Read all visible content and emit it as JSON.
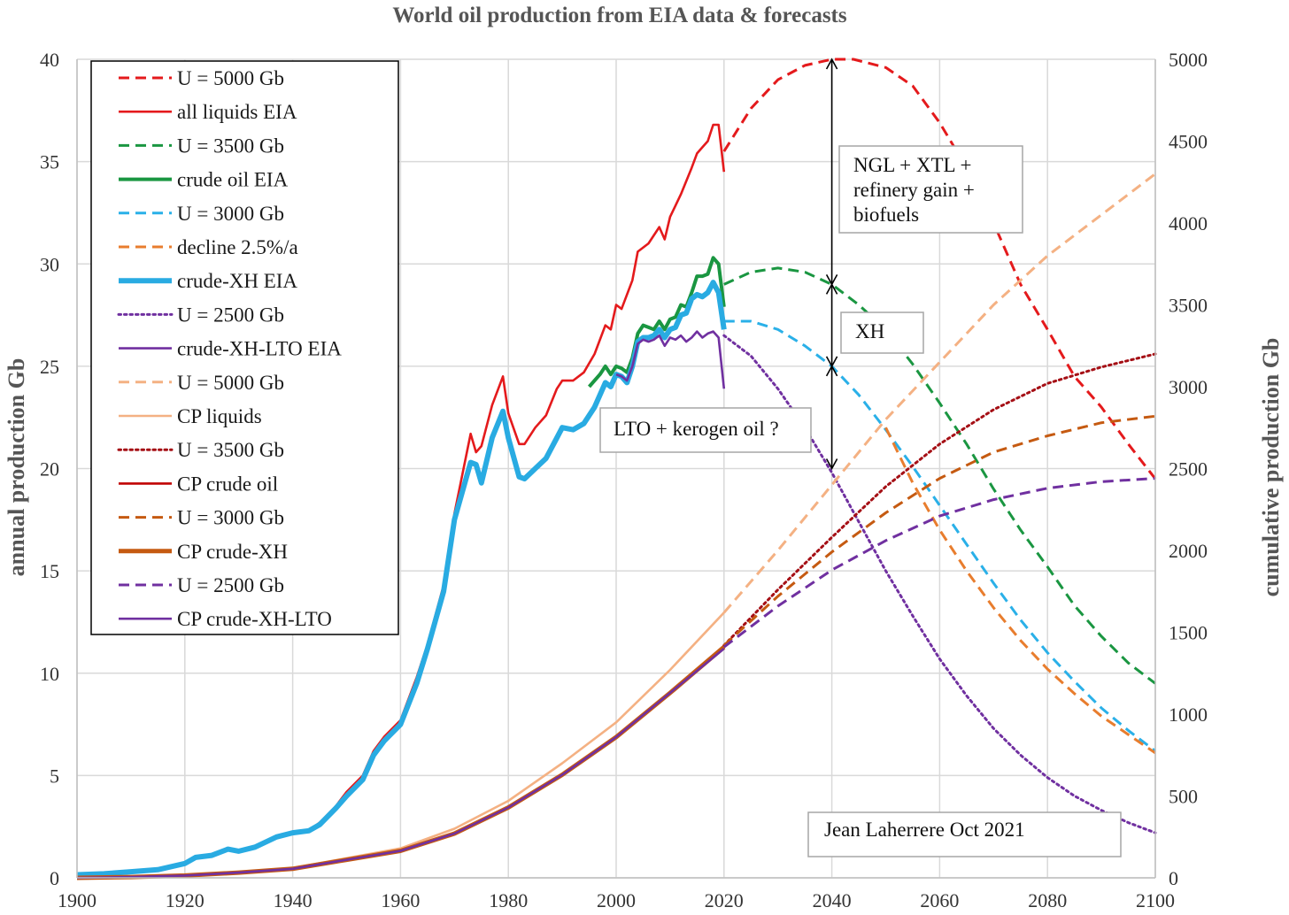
{
  "chart_data": {
    "type": "line",
    "title": "World oil production from EIA data & forecasts",
    "ylabel_left": "annual production Gb",
    "ylabel_right": "cumulative production Gb",
    "xlim": [
      1900,
      2100
    ],
    "ylim_left": [
      0,
      40
    ],
    "ylim_right": [
      0,
      5000
    ],
    "x_ticks": [
      "1900",
      "1920",
      "1940",
      "1960",
      "1980",
      "2000",
      "2020",
      "2040",
      "2060",
      "2080",
      "2100"
    ],
    "y_ticks_left": [
      "0",
      "5",
      "10",
      "15",
      "20",
      "25",
      "30",
      "35",
      "40"
    ],
    "y_ticks_right": [
      "0",
      "500",
      "1000",
      "1500",
      "2000",
      "2500",
      "3000",
      "3500",
      "4000",
      "4500",
      "5000"
    ],
    "grid": true,
    "legend_position": "top-left",
    "series": [
      {
        "name": "U = 5000 Gb",
        "axis": "left",
        "color": "#e41a1c",
        "dash": "dashed",
        "x": [
          2020,
          2025,
          2030,
          2035,
          2040,
          2044,
          2050,
          2055,
          2060,
          2065,
          2070,
          2075,
          2080,
          2085,
          2090,
          2095,
          2100
        ],
        "y": [
          35.5,
          37.6,
          39.0,
          39.7,
          40.0,
          40.0,
          39.6,
          38.7,
          36.9,
          34.7,
          32.0,
          29.0,
          26.8,
          24.5,
          23.0,
          21.2,
          19.5
        ]
      },
      {
        "name": "all liquids EIA",
        "axis": "left",
        "color": "#e41a1c",
        "dash": "solid",
        "x": [
          1900,
          1905,
          1910,
          1915,
          1920,
          1922,
          1925,
          1928,
          1930,
          1933,
          1937,
          1940,
          1943,
          1945,
          1948,
          1950,
          1953,
          1955,
          1957,
          1960,
          1963,
          1965,
          1968,
          1970,
          1973,
          1974,
          1975,
          1977,
          1979,
          1980,
          1982,
          1983,
          1985,
          1987,
          1989,
          1990,
          1992,
          1994,
          1996,
          1998,
          1999,
          2000,
          2001,
          2003,
          2004,
          2006,
          2008,
          2009,
          2010,
          2012,
          2014,
          2015,
          2016,
          2017,
          2018,
          2019,
          2020
        ],
        "y": [
          0.15,
          0.2,
          0.3,
          0.4,
          0.7,
          1.0,
          1.1,
          1.4,
          1.3,
          1.5,
          2.0,
          2.2,
          2.3,
          2.7,
          3.5,
          4.2,
          5.0,
          6.2,
          6.9,
          7.7,
          9.8,
          11.4,
          14.3,
          17.8,
          21.7,
          20.8,
          21.1,
          23.1,
          24.5,
          22.7,
          21.2,
          21.2,
          22.0,
          22.6,
          23.9,
          24.3,
          24.3,
          24.7,
          25.6,
          27.0,
          26.8,
          28.0,
          27.8,
          29.2,
          30.6,
          31.0,
          31.8,
          31.2,
          32.3,
          33.4,
          34.7,
          35.4,
          35.7,
          36.0,
          36.8,
          36.8,
          34.5
        ]
      },
      {
        "name": "U = 3500 Gb",
        "axis": "left",
        "color": "#1a9641",
        "dash": "dashed",
        "x": [
          2020,
          2025,
          2030,
          2035,
          2040,
          2045,
          2050,
          2055,
          2060,
          2065,
          2070,
          2075,
          2080,
          2085,
          2090,
          2095,
          2100
        ],
        "y": [
          29.0,
          29.6,
          29.8,
          29.6,
          29.0,
          28.0,
          26.8,
          25.1,
          23.2,
          21.2,
          19.0,
          17.0,
          15.2,
          13.3,
          11.8,
          10.5,
          9.5
        ]
      },
      {
        "name": "crude oil  EIA",
        "axis": "left",
        "color": "#1a9641",
        "dash": "solid",
        "x": [
          1995,
          1997,
          1998,
          1999,
          2000,
          2001,
          2002,
          2003,
          2004,
          2005,
          2006,
          2007,
          2008,
          2009,
          2010,
          2011,
          2012,
          2013,
          2014,
          2015,
          2016,
          2017,
          2018,
          2019,
          2020
        ],
        "y": [
          24.0,
          24.6,
          25.0,
          24.6,
          25.0,
          24.9,
          24.7,
          25.4,
          26.6,
          27.0,
          26.9,
          26.8,
          27.2,
          26.8,
          27.3,
          27.4,
          28.0,
          27.9,
          28.6,
          29.4,
          29.4,
          29.5,
          30.3,
          30.0,
          27.9
        ]
      },
      {
        "name": "U = 3000 Gb",
        "axis": "left",
        "color": "#2ab0e8",
        "dash": "dashed",
        "x": [
          2020,
          2025,
          2030,
          2035,
          2040,
          2045,
          2050,
          2055,
          2060,
          2065,
          2070,
          2075,
          2080,
          2085,
          2090,
          2095,
          2100
        ],
        "y": [
          27.2,
          27.2,
          26.8,
          26.0,
          25.0,
          23.6,
          21.9,
          20.1,
          18.2,
          16.3,
          14.4,
          12.6,
          11.0,
          9.6,
          8.3,
          7.2,
          6.2
        ]
      },
      {
        "name": "decline 2.5%/a",
        "axis": "left",
        "color": "#e87d2e",
        "dash": "dashed",
        "x": [
          2050,
          2055,
          2060,
          2065,
          2070,
          2075,
          2080,
          2085,
          2090,
          2095,
          2100
        ],
        "y": [
          22.0,
          19.3,
          17.0,
          15.0,
          13.2,
          11.6,
          10.2,
          9.0,
          7.9,
          7.0,
          6.1
        ]
      },
      {
        "name": "crude-XH EIA",
        "axis": "left",
        "color": "#29abe2",
        "dash": "solid",
        "x": [
          1900,
          1905,
          1910,
          1915,
          1920,
          1922,
          1925,
          1928,
          1930,
          1933,
          1937,
          1940,
          1943,
          1945,
          1948,
          1950,
          1953,
          1955,
          1957,
          1960,
          1963,
          1965,
          1968,
          1970,
          1973,
          1974,
          1975,
          1977,
          1979,
          1980,
          1982,
          1983,
          1985,
          1987,
          1989,
          1990,
          1992,
          1994,
          1996,
          1998,
          1999,
          2000,
          2001,
          2002,
          2003,
          2004,
          2005,
          2006,
          2007,
          2008,
          2009,
          2010,
          2011,
          2012,
          2013,
          2014,
          2015,
          2016,
          2017,
          2018,
          2019,
          2020
        ],
        "y": [
          0.15,
          0.2,
          0.3,
          0.4,
          0.7,
          1.0,
          1.1,
          1.4,
          1.3,
          1.5,
          2.0,
          2.2,
          2.3,
          2.6,
          3.4,
          4.0,
          4.8,
          6.0,
          6.7,
          7.5,
          9.5,
          11.2,
          14.0,
          17.5,
          20.3,
          20.2,
          19.3,
          21.5,
          22.8,
          21.5,
          19.6,
          19.5,
          20.0,
          20.5,
          21.5,
          22.0,
          21.9,
          22.2,
          23.0,
          24.2,
          24.0,
          24.6,
          24.5,
          24.2,
          25.0,
          26.2,
          26.4,
          26.4,
          26.5,
          26.8,
          26.4,
          26.8,
          26.9,
          27.5,
          27.6,
          28.3,
          28.5,
          28.4,
          28.6,
          29.1,
          28.6,
          26.8
        ]
      },
      {
        "name": "U = 2500 Gb",
        "axis": "left",
        "color": "#7030a0",
        "dash": "dotted",
        "x": [
          2020,
          2025,
          2030,
          2035,
          2040,
          2045,
          2050,
          2055,
          2060,
          2065,
          2070,
          2075,
          2080,
          2085,
          2090,
          2095,
          2100
        ],
        "y": [
          26.5,
          25.5,
          23.9,
          22.0,
          19.8,
          17.4,
          15.0,
          12.8,
          10.7,
          8.9,
          7.3,
          6.0,
          4.9,
          4.0,
          3.3,
          2.7,
          2.2
        ]
      },
      {
        "name": "crude-XH-LTO EIA",
        "axis": "left",
        "color": "#7030a0",
        "dash": "solid",
        "x": [
          2000,
          2001,
          2002,
          2003,
          2004,
          2005,
          2006,
          2007,
          2008,
          2009,
          2010,
          2011,
          2012,
          2013,
          2014,
          2015,
          2016,
          2017,
          2018,
          2019,
          2020
        ],
        "y": [
          24.6,
          24.5,
          24.3,
          25.0,
          26.1,
          26.3,
          26.2,
          26.3,
          26.5,
          26.0,
          26.4,
          26.3,
          26.5,
          26.2,
          26.4,
          26.7,
          26.4,
          26.6,
          26.7,
          26.4,
          23.9
        ]
      },
      {
        "name": "U = 5000 Gb",
        "axis": "right",
        "color": "#f4b183",
        "dash": "dashed",
        "x": [
          2020,
          2030,
          2040,
          2050,
          2060,
          2070,
          2080,
          2090,
          2100
        ],
        "y": [
          1620,
          2000,
          2400,
          2800,
          3150,
          3500,
          3800,
          4050,
          4300
        ]
      },
      {
        "name": "CP liquids",
        "axis": "right",
        "color": "#f4b183",
        "dash": "solid",
        "x": [
          1900,
          1910,
          1920,
          1930,
          1940,
          1950,
          1960,
          1970,
          1980,
          1990,
          2000,
          2010,
          2020
        ],
        "y": [
          0,
          5,
          15,
          35,
          60,
          120,
          180,
          300,
          470,
          700,
          950,
          1270,
          1620
        ]
      },
      {
        "name": "U = 3500 Gb",
        "axis": "right",
        "color": "#a50f15",
        "dash": "dotted",
        "x": [
          2020,
          2030,
          2040,
          2050,
          2060,
          2070,
          2080,
          2090,
          2100
        ],
        "y": [
          1420,
          1760,
          2080,
          2390,
          2650,
          2860,
          3020,
          3120,
          3200
        ]
      },
      {
        "name": "CP crude oil",
        "axis": "right",
        "color": "#c00000",
        "dash": "solid",
        "x": [
          1900,
          1910,
          1920,
          1930,
          1940,
          1950,
          1960,
          1970,
          1980,
          1990,
          2000,
          2010,
          2020
        ],
        "y": [
          0,
          5,
          14,
          32,
          55,
          110,
          165,
          270,
          430,
          630,
          860,
          1130,
          1410
        ]
      },
      {
        "name": "U = 3000 Gb",
        "axis": "right",
        "color": "#c55a11",
        "dash": "dashed",
        "x": [
          2020,
          2030,
          2040,
          2050,
          2060,
          2070,
          2080,
          2090,
          2100
        ],
        "y": [
          1420,
          1720,
          1990,
          2230,
          2440,
          2600,
          2700,
          2780,
          2820
        ]
      },
      {
        "name": "CP crude-XH",
        "axis": "right",
        "color": "#c55a11",
        "dash": "solid",
        "x": [
          1900,
          1910,
          1920,
          1930,
          1940,
          1950,
          1960,
          1970,
          1980,
          1990,
          2000,
          2010,
          2020
        ],
        "y": [
          0,
          5,
          14,
          32,
          55,
          110,
          165,
          270,
          430,
          630,
          860,
          1130,
          1410
        ]
      },
      {
        "name": "U = 2500 Gb",
        "axis": "right",
        "color": "#7030a0",
        "dash": "dashed",
        "x": [
          2020,
          2030,
          2040,
          2050,
          2060,
          2070,
          2080,
          2090,
          2100
        ],
        "y": [
          1410,
          1660,
          1880,
          2060,
          2210,
          2310,
          2380,
          2420,
          2440
        ]
      },
      {
        "name": "CP crude-XH-LTO",
        "axis": "right",
        "color": "#7030a0",
        "dash": "solid",
        "x": [
          1900,
          1910,
          1920,
          1930,
          1940,
          1950,
          1960,
          1970,
          1980,
          1990,
          2000,
          2010,
          2020
        ],
        "y": [
          0,
          5,
          14,
          32,
          55,
          110,
          165,
          270,
          430,
          630,
          860,
          1130,
          1400
        ]
      }
    ],
    "annotations": [
      {
        "lines": [
          "NGL + XTL +",
          "refinery gain +",
          "biofuels"
        ]
      },
      {
        "lines": [
          "XH"
        ]
      },
      {
        "lines": [
          "LTO + kerogen oil ?"
        ]
      },
      {
        "lines": [
          "Jean Laherrere Oct 2021"
        ]
      }
    ]
  }
}
